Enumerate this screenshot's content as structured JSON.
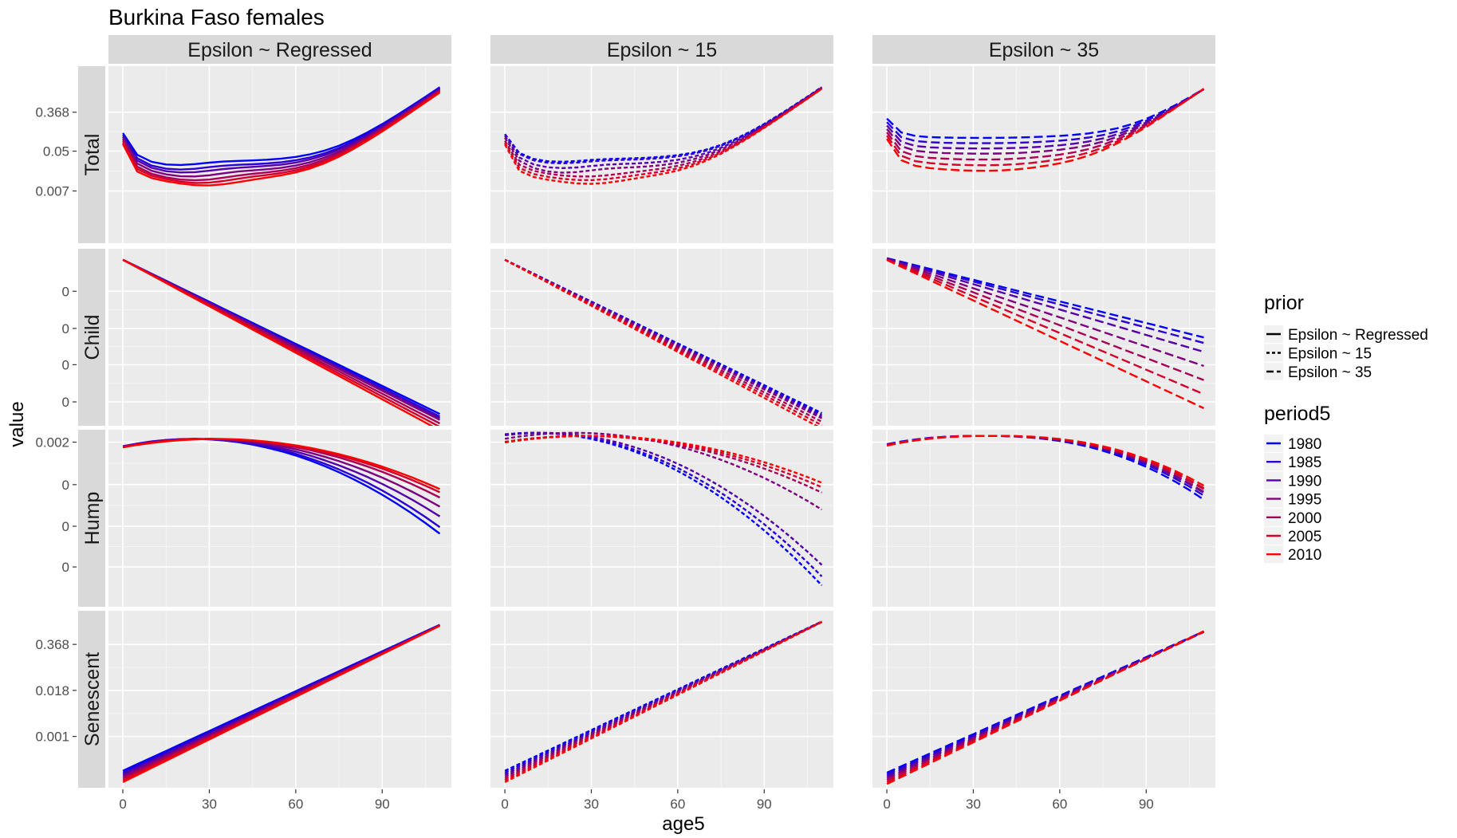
{
  "title": "Burkina Faso females",
  "colors": {
    "panel_bg": "#EBEBEB",
    "strip_bg": "#D9D9D9",
    "grid_major": "#FFFFFF",
    "grid_minor": "#F5F5F5",
    "tick_text": "#4D4D4D"
  },
  "chart_data": {
    "type": "line",
    "title": "Burkina Faso females",
    "xlabel": "age5",
    "ylabel": "value",
    "xlim": [
      -5,
      114
    ],
    "x_ticks": [
      "0",
      "30",
      "60",
      "90"
    ],
    "x": [
      0,
      5,
      10,
      15,
      20,
      25,
      30,
      35,
      40,
      45,
      50,
      55,
      60,
      65,
      70,
      75,
      80,
      85,
      90,
      95,
      100,
      105,
      110
    ],
    "columns": [
      "Epsilon ~ Regressed",
      "Epsilon ~ 15",
      "Epsilon ~ 35"
    ],
    "rows": [
      "Total",
      "Child",
      "Hump",
      "Senescent"
    ],
    "row_y_ticks": {
      "Total": [
        "0.368",
        "0.05",
        "0.007"
      ],
      "Child": [
        "0",
        "0",
        "0",
        "0"
      ],
      "Hump": [
        "0.002",
        "0",
        "0",
        "0"
      ],
      "Senescent": [
        "0.368",
        "0.018",
        "0.001"
      ]
    },
    "legend_prior": {
      "title": "prior",
      "items": [
        {
          "label": "Epsilon ~ Regressed",
          "dash": "solid"
        },
        {
          "label": "Epsilon ~ 15",
          "dash": "dotted"
        },
        {
          "label": "Epsilon ~ 35",
          "dash": "dashed"
        }
      ]
    },
    "legend_period": {
      "title": "period5",
      "items": [
        {
          "label": "1980",
          "color": "#0000FF"
        },
        {
          "label": "1985",
          "color": "#2A00D4"
        },
        {
          "label": "1990",
          "color": "#5500AA"
        },
        {
          "label": "1995",
          "color": "#7F007F"
        },
        {
          "label": "2000",
          "color": "#AA0055"
        },
        {
          "label": "2005",
          "color": "#D4002A"
        },
        {
          "label": "2010",
          "color": "#FF0000"
        }
      ]
    },
    "y_scale_note": "log-scaled values (ln)",
    "panels": [
      {
        "row": "Total",
        "col": "Epsilon ~ Regressed",
        "ylim": [
          -8.6,
          0.9
        ],
        "params": {
          "A": [
            -2.9,
            -3.0,
            -3.1,
            -3.2,
            -3.3,
            -3.4,
            -3.5
          ],
          "B": [
            1.7,
            1.9,
            2.0,
            2.2,
            2.4,
            2.55,
            2.7
          ],
          "C0": [
            -4.3,
            -4.4,
            -4.5,
            -4.6,
            -4.7,
            -4.8,
            -4.9
          ],
          "C1": [
            -0.9,
            -0.85,
            -0.8,
            -0.75,
            -0.7,
            -0.65,
            -0.6
          ],
          "C2": [
            -1.05,
            -1.0,
            -0.95,
            -0.9,
            -0.85,
            -0.8,
            -0.75
          ],
          "L": [
            18,
            19,
            21,
            23,
            25,
            27,
            29
          ],
          "W": [
            11,
            11,
            12,
            12,
            13,
            13,
            14
          ],
          "S0": [
            -11.8,
            -11.9,
            -12.0,
            -12.1,
            -12.2,
            -12.3,
            -12.4
          ],
          "S1": [
            0.105,
            0.1055,
            0.106,
            0.1065,
            0.107,
            0.1075,
            0.108
          ]
        }
      },
      {
        "row": "Total",
        "col": "Epsilon ~ 15",
        "ylim": [
          -8.6,
          0.9
        ],
        "params": {
          "A": [
            -3.0,
            -3.0,
            -3.1,
            -3.2,
            -3.3,
            -3.4,
            -3.5
          ],
          "B": [
            1.4,
            1.5,
            1.7,
            1.9,
            2.1,
            2.3,
            2.5
          ],
          "C0": [
            -4.2,
            -4.2,
            -4.3,
            -4.4,
            -4.8,
            -4.9,
            -5.0
          ],
          "C1": [
            -0.8,
            -0.8,
            -0.8,
            -0.8,
            -0.65,
            -0.6,
            -0.6
          ],
          "C2": [
            -1.2,
            -1.2,
            -1.15,
            -1.1,
            -0.8,
            -0.75,
            -0.7
          ],
          "L": [
            18,
            18,
            19,
            20,
            28,
            29,
            30
          ],
          "W": [
            11,
            11,
            11,
            11,
            14,
            14,
            14
          ],
          "S0": [
            -11.9,
            -11.95,
            -12.0,
            -12.05,
            -12.1,
            -12.15,
            -12.2
          ],
          "S1": [
            0.106,
            0.1063,
            0.1066,
            0.107,
            0.1073,
            0.1076,
            0.108
          ]
        }
      },
      {
        "row": "Total",
        "col": "Epsilon ~ 35",
        "ylim": [
          -8.6,
          0.9
        ],
        "params": {
          "A": [
            -2.0,
            -2.2,
            -2.4,
            -2.6,
            -2.8,
            -3.0,
            -3.2
          ],
          "B": [
            1.0,
            1.1,
            1.2,
            1.3,
            1.45,
            1.6,
            1.75
          ],
          "C0": [
            -4.4,
            -4.45,
            -4.5,
            -4.55,
            -4.6,
            -4.65,
            -4.7
          ],
          "C1": [
            -0.8,
            -0.8,
            -0.8,
            -0.8,
            -0.8,
            -0.8,
            -0.8
          ],
          "C2": [
            -0.9,
            -0.9,
            -0.9,
            -0.9,
            -0.9,
            -0.9,
            -0.9
          ],
          "L": [
            36,
            36,
            36,
            36,
            36,
            36,
            36
          ],
          "W": [
            20,
            20,
            20,
            20,
            20,
            20,
            20
          ],
          "S0": [
            -11.4,
            -11.5,
            -11.6,
            -11.75,
            -11.9,
            -12.05,
            -12.2
          ],
          "S1": [
            0.1,
            0.101,
            0.102,
            0.1035,
            0.105,
            0.1065,
            0.108
          ]
        }
      },
      {
        "row": "Child",
        "col": "Epsilon ~ Regressed",
        "ylim": [
          -1.06,
          0.07
        ],
        "child": {
          "start": [
            0.0,
            0.0,
            0.0,
            0.0,
            0.0,
            0.0,
            0.0
          ],
          "slope": [
            -0.00895,
            -0.0091,
            -0.0092,
            -0.0093,
            -0.0095,
            -0.0097,
            -0.0099
          ]
        }
      },
      {
        "row": "Child",
        "col": "Epsilon ~ 15",
        "ylim": [
          -1.06,
          0.07
        ],
        "child": {
          "start": [
            0.0,
            0.0,
            0.0,
            0.0,
            0.0,
            0.0,
            0.0
          ],
          "slope": [
            -0.0089,
            -0.009,
            -0.0091,
            -0.0092,
            -0.0094,
            -0.0096,
            -0.0098
          ]
        }
      },
      {
        "row": "Child",
        "col": "Epsilon ~ 35",
        "ylim": [
          -1.06,
          0.07
        ],
        "child": {
          "start": [
            0.01,
            0.008,
            0.006,
            0.004,
            0.002,
            0.0,
            -0.002
          ],
          "slope": [
            -0.0046,
            -0.0049,
            -0.0054,
            -0.0062,
            -0.007,
            -0.0078,
            -0.0086
          ]
        }
      },
      {
        "row": "Hump",
        "col": "Epsilon ~ Regressed",
        "ylim": [
          -0.00075,
          0.00215
        ],
        "hump": {
          "a": [
            0.002,
            0.002,
            0.002,
            0.002,
            0.002,
            0.002,
            0.002
          ],
          "xp": [
            24,
            25,
            26,
            28,
            30,
            31,
            32
          ],
          "b": [
            2.1e-07,
            2e-07,
            1.8e-07,
            1.65e-07,
            1.5e-07,
            1.4e-07,
            1.35e-07
          ],
          "p": [
            2.0,
            2.0,
            2.0,
            2.0,
            2.0,
            2.0,
            2.0
          ]
        }
      },
      {
        "row": "Hump",
        "col": "Epsilon ~ 15",
        "ylim": [
          -0.00075,
          0.00215
        ],
        "hump": {
          "a": [
            0.0021,
            0.0021,
            0.0021,
            0.0021,
            0.00205,
            0.00205,
            0.00205
          ],
          "xp": [
            10,
            11,
            13,
            24,
            27,
            28,
            30
          ],
          "b": [
            2.5e-07,
            2.4e-07,
            2.3e-07,
            1.7e-07,
            1.35e-07,
            1.25e-07,
            1.2e-07
          ],
          "p": [
            2.0,
            2.0,
            2.0,
            2.0,
            2.0,
            2.0,
            2.0
          ]
        }
      },
      {
        "row": "Hump",
        "col": "Epsilon ~ 35",
        "ylim": [
          -0.00075,
          0.00215
        ],
        "hump": {
          "a": [
            0.00205,
            0.00205,
            0.00205,
            0.00205,
            0.00205,
            0.00205,
            0.00205
          ],
          "xp": [
            33,
            34,
            35,
            35,
            36,
            36,
            37
          ],
          "b": [
            3.1e-08,
            3e-08,
            2.95e-08,
            2.9e-08,
            2.85e-08,
            2.8e-08,
            2.75e-08
          ],
          "p": [
            2.4,
            2.4,
            2.4,
            2.4,
            2.4,
            2.4,
            2.4
          ]
        }
      },
      {
        "row": "Senescent",
        "col": "Epsilon ~ Regressed",
        "ylim": [
          -9.3,
          0.1
        ],
        "sen": {
          "s0": [
            -8.4,
            -8.5,
            -8.6,
            -8.7,
            -8.8,
            -8.9,
            -9.0
          ],
          "s1": [
            0.0705,
            0.0713,
            0.072,
            0.0729,
            0.0738,
            0.0747,
            0.0755
          ]
        }
      },
      {
        "row": "Senescent",
        "col": "Epsilon ~ 15",
        "ylim": [
          -9.3,
          0.1
        ],
        "sen": {
          "s0": [
            -8.4,
            -8.5,
            -8.6,
            -8.7,
            -8.8,
            -8.9,
            -9.0
          ],
          "s1": [
            0.0721,
            0.0729,
            0.0738,
            0.0747,
            0.0756,
            0.0764,
            0.0773
          ]
        }
      },
      {
        "row": "Senescent",
        "col": "Epsilon ~ 35",
        "ylim": [
          -9.3,
          0.1
        ],
        "sen": {
          "s0": [
            -8.5,
            -8.6,
            -8.7,
            -8.8,
            -8.9,
            -9.0,
            -9.1
          ],
          "s1": [
            0.0682,
            0.069,
            0.0698,
            0.0707,
            0.0716,
            0.0726,
            0.0738
          ]
        }
      }
    ]
  }
}
